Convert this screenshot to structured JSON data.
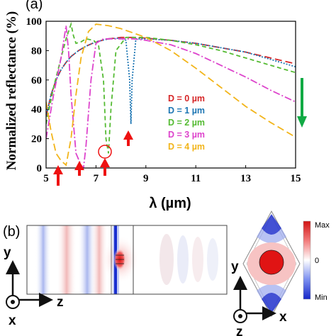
{
  "panel_a_label": "(a)",
  "panel_b_label": "(b)",
  "chart_data": {
    "type": "line",
    "title": "",
    "xlabel": "λ (µm)",
    "ylabel": "Normalized reflectance (%)",
    "xlim": [
      5,
      15
    ],
    "ylim": [
      0,
      100
    ],
    "xticks": [
      "5",
      "7",
      "9",
      "11",
      "13",
      "15"
    ],
    "yticks": [
      "0",
      "20",
      "40",
      "60",
      "80",
      "100"
    ],
    "grid": false,
    "legend_position": "center-right",
    "series": [
      {
        "name": "D = 0 µm",
        "color": "#d62728",
        "dash": "10,5",
        "x": [
          5.0,
          5.2,
          5.4,
          5.6,
          5.8,
          6.0,
          6.3,
          6.6,
          7.0,
          7.5,
          8.0,
          8.5,
          9.0,
          10,
          11,
          12,
          13,
          14,
          15
        ],
        "y": [
          35,
          50,
          60,
          67,
          72,
          76,
          80,
          83,
          86,
          88,
          89,
          89,
          88.5,
          87,
          85,
          82,
          79,
          75,
          71
        ]
      },
      {
        "name": "D = 1 µm",
        "color": "#1f77b4",
        "dash": "2,2",
        "x": [
          5.0,
          5.2,
          5.4,
          5.6,
          5.8,
          6.0,
          6.3,
          6.6,
          7.0,
          7.5,
          8.0,
          8.2,
          8.35,
          8.4,
          8.45,
          8.6,
          9.0,
          10,
          11,
          12,
          13,
          14,
          15
        ],
        "y": [
          35,
          50,
          60,
          67,
          72,
          76,
          80,
          83,
          86,
          88,
          88.5,
          87,
          60,
          30,
          60,
          88,
          88,
          87,
          85,
          82,
          79,
          74,
          69
        ]
      },
      {
        "name": "D = 2 µm",
        "color": "#55bb33",
        "dash": "6,4",
        "x": [
          5.0,
          5.3,
          5.6,
          5.8,
          6.0,
          6.1,
          6.2,
          6.4,
          6.6,
          6.9,
          7.1,
          7.3,
          7.4,
          7.5,
          7.6,
          7.8,
          8.2,
          9,
          10,
          11,
          12,
          13,
          14,
          15
        ],
        "y": [
          30,
          55,
          75,
          88,
          98,
          90,
          85,
          86,
          88,
          87,
          84,
          60,
          20,
          10,
          40,
          80,
          89,
          89,
          87,
          84,
          80,
          75,
          70,
          65
        ]
      },
      {
        "name": "D = 3 µm",
        "color": "#dd44cc",
        "dash": "10,3,2,3",
        "x": [
          5.0,
          5.3,
          5.6,
          5.8,
          5.9,
          6.0,
          6.2,
          6.4,
          6.5,
          6.6,
          6.8,
          7.0,
          7.3,
          7.6,
          8.0,
          8.5,
          9,
          10,
          11,
          12,
          13,
          14,
          15
        ],
        "y": [
          20,
          50,
          75,
          97,
          80,
          50,
          10,
          2,
          0,
          15,
          60,
          85,
          88,
          88,
          88,
          88,
          87,
          84,
          78,
          70,
          62,
          53,
          45
        ]
      },
      {
        "name": "D = 4 µm",
        "color": "#f2b51b",
        "dash": "10,5",
        "x": [
          5.0,
          5.2,
          5.4,
          5.6,
          5.8,
          6.0,
          6.2,
          6.4,
          6.7,
          7.0,
          7.5,
          8.0,
          8.5,
          9,
          10,
          11,
          12,
          13,
          14,
          15
        ],
        "y": [
          45,
          25,
          10,
          5,
          2,
          20,
          50,
          75,
          93,
          98,
          97,
          95,
          92,
          89,
          80,
          68,
          55,
          42,
          31,
          21
        ]
      }
    ],
    "annotations": []
  },
  "panel_b": {
    "y_axis_label": "y",
    "z_axis_label": "z",
    "x_axis_label": "x",
    "colorbar_max": "Max",
    "colorbar_mid": "0",
    "colorbar_min": "Min",
    "right_y_label": "y",
    "right_x_label": "x",
    "right_z_label": "z"
  },
  "colors": {
    "red_arrow": "#ee1111",
    "green_arrow": "#11aa44",
    "field_red": "#e21a1a",
    "field_blue": "#1a2fd0"
  }
}
